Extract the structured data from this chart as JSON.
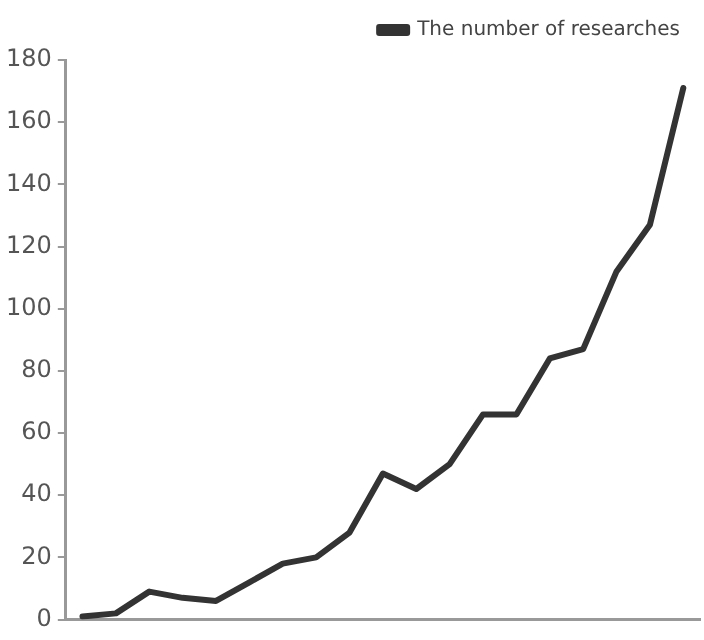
{
  "chart_data": {
    "type": "line",
    "categories": [
      null,
      null,
      null,
      null,
      null,
      null,
      null,
      null,
      null,
      null,
      null,
      null,
      null,
      null,
      null,
      null,
      null,
      null,
      null
    ],
    "series": [
      {
        "name": "The number of researches",
        "color": "#333333",
        "values": [
          1,
          2,
          9,
          7,
          6,
          12,
          18,
          20,
          28,
          47,
          42,
          50,
          66,
          66,
          84,
          87,
          112,
          127,
          171
        ]
      }
    ],
    "ylim": [
      0,
      180
    ],
    "yticks": [
      0,
      20,
      40,
      60,
      80,
      100,
      120,
      140,
      160,
      180
    ],
    "grid": false,
    "legend": "top right",
    "marker": "none",
    "line_style": "solid",
    "tick_labels": "y"
  }
}
